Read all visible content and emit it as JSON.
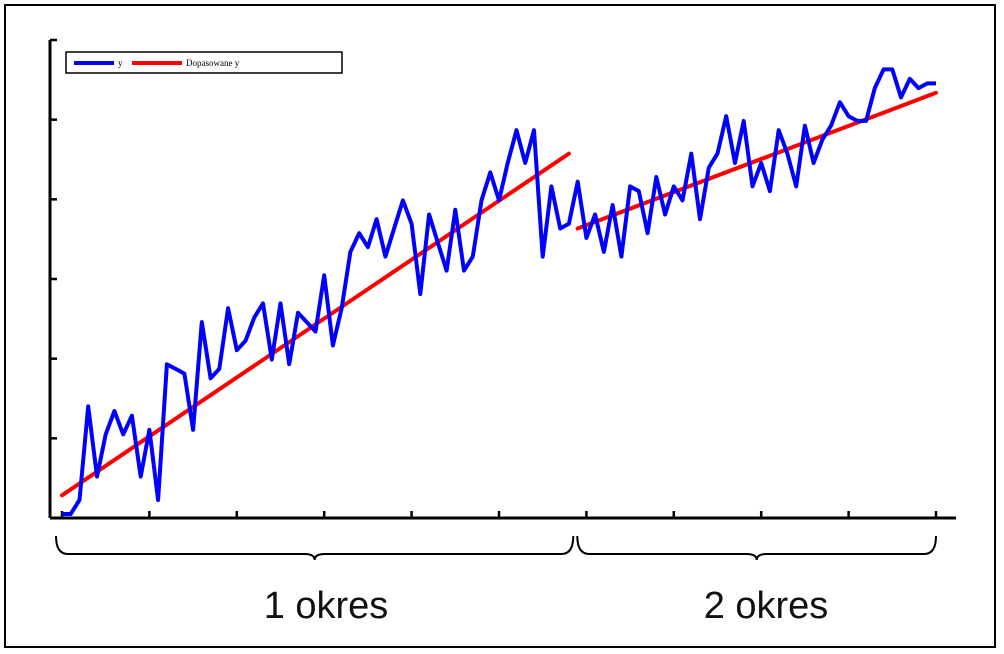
{
  "chart_data": {
    "type": "line",
    "title": "",
    "xlabel": "",
    "ylabel": "",
    "xlim": [
      0,
      100
    ],
    "ylim": [
      0,
      100
    ],
    "grid": false,
    "legend": {
      "placement": "top-left",
      "entries": [
        "y",
        "Dopasowane y"
      ]
    },
    "colors": {
      "y": "#0000ff",
      "fit": "#ff0000"
    },
    "series": [
      {
        "name": "y",
        "x": [
          0,
          1,
          2,
          3,
          4,
          5,
          6,
          7,
          8,
          9,
          10,
          11,
          12,
          13,
          14,
          15,
          16,
          17,
          18,
          19,
          20,
          21,
          22,
          23,
          24,
          25,
          26,
          27,
          28,
          29,
          30,
          31,
          32,
          33,
          34,
          35,
          36,
          37,
          38,
          39,
          40,
          41,
          42,
          43,
          44,
          45,
          46,
          47,
          48,
          49,
          50,
          51,
          52,
          53,
          54,
          55,
          56,
          57,
          58,
          59,
          60,
          61,
          62,
          63,
          64,
          65,
          66,
          67,
          68,
          69,
          70,
          71,
          72,
          73,
          74,
          75,
          76,
          77,
          78,
          79,
          80,
          81,
          82,
          83,
          84,
          85,
          86,
          87,
          88,
          89,
          90,
          91,
          92,
          93,
          94,
          95,
          96,
          97,
          98,
          99,
          100
        ],
        "values": [
          0,
          0,
          3,
          23,
          8,
          17,
          22,
          17,
          21,
          8,
          18,
          3,
          32,
          31,
          30,
          18,
          41,
          29,
          31,
          44,
          35,
          37,
          42,
          45,
          33,
          45,
          32,
          43,
          41,
          39,
          51,
          36,
          44,
          56,
          60,
          57,
          63,
          55,
          61,
          67,
          62,
          47,
          64,
          58,
          52,
          65,
          52,
          55,
          67,
          73,
          67,
          75,
          82,
          75,
          82,
          55,
          70,
          61,
          62,
          71,
          59,
          64,
          56,
          66,
          55,
          70,
          69,
          60,
          72,
          64,
          70,
          67,
          77,
          63,
          74,
          77,
          85,
          75,
          84,
          70,
          75,
          69,
          82,
          77,
          70,
          83,
          75,
          80,
          83,
          88,
          85,
          84,
          84,
          91,
          95,
          95,
          89,
          93,
          91,
          92,
          92
        ]
      },
      {
        "name": "Dopasowane y",
        "segments": [
          {
            "x": [
              0,
              58
            ],
            "values": [
              4,
              77
            ]
          },
          {
            "x": [
              59,
              100
            ],
            "values": [
              61,
              90
            ]
          }
        ]
      }
    ],
    "periods": [
      {
        "label": "1 okres",
        "x": [
          0,
          58.5
        ]
      },
      {
        "label": "2 okres",
        "x": [
          58.5,
          100
        ]
      }
    ],
    "x_ticks": 10,
    "y_ticks": 6
  }
}
